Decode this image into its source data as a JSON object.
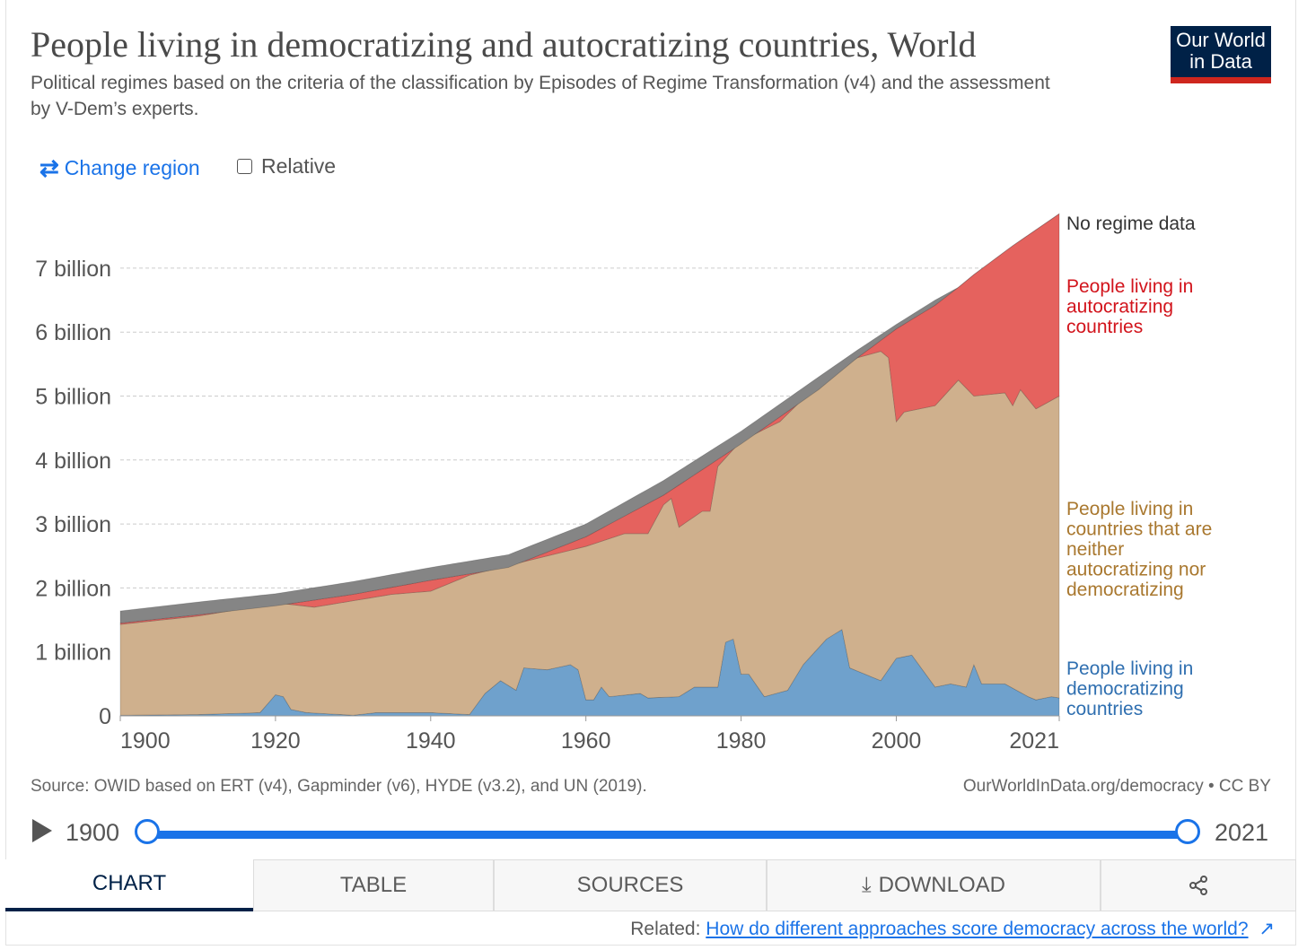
{
  "header": {
    "title": "People living in democratizing and autocratizing countries, World",
    "subtitle": "Political regimes based on the criteria of the classification by Episodes of Regime Transformation (v4) and the assessment by V-Dem’s experts.",
    "logo_text": "Our World in Data"
  },
  "controls": {
    "change_region": "Change region",
    "relative": "Relative"
  },
  "chart_data": {
    "type": "area",
    "stacked": true,
    "title": "People living in democratizing and autocratizing countries, World",
    "xlim": [
      1900,
      2021
    ],
    "ylim": [
      0,
      8000000000
    ],
    "x_ticks": [
      "1900",
      "1920",
      "1940",
      "1960",
      "1980",
      "2000",
      "2021"
    ],
    "x_tick_values": [
      1900,
      1920,
      1940,
      1960,
      1980,
      2000,
      2021
    ],
    "y_ticks": [
      "0",
      "1 billion",
      "2 billion",
      "3 billion",
      "4 billion",
      "5 billion",
      "6 billion",
      "7 billion"
    ],
    "y_tick_values": [
      0,
      1,
      2,
      3,
      4,
      5,
      6,
      7
    ],
    "unit": "billion people; points give the cumulative top of each stacked layer",
    "grid": true,
    "legend_placement": "right (inline labels)",
    "series": [
      {
        "name": "People living in democratizing countries",
        "color": "#6fa1cc",
        "label_color": "#2f6fb0",
        "points": [
          [
            1900,
            0.01
          ],
          [
            1910,
            0.02
          ],
          [
            1918,
            0.05
          ],
          [
            1920,
            0.33
          ],
          [
            1921,
            0.3
          ],
          [
            1922,
            0.1
          ],
          [
            1924,
            0.05
          ],
          [
            1930,
            0.01
          ],
          [
            1933,
            0.05
          ],
          [
            1940,
            0.05
          ],
          [
            1945,
            0.02
          ],
          [
            1947,
            0.35
          ],
          [
            1949,
            0.55
          ],
          [
            1951,
            0.4
          ],
          [
            1952,
            0.75
          ],
          [
            1955,
            0.72
          ],
          [
            1958,
            0.8
          ],
          [
            1959,
            0.72
          ],
          [
            1960,
            0.25
          ],
          [
            1961,
            0.25
          ],
          [
            1962,
            0.45
          ],
          [
            1963,
            0.3
          ],
          [
            1967,
            0.35
          ],
          [
            1968,
            0.28
          ],
          [
            1972,
            0.3
          ],
          [
            1974,
            0.45
          ],
          [
            1977,
            0.45
          ],
          [
            1978,
            1.15
          ],
          [
            1979,
            1.2
          ],
          [
            1980,
            0.65
          ],
          [
            1981,
            0.65
          ],
          [
            1983,
            0.3
          ],
          [
            1986,
            0.4
          ],
          [
            1988,
            0.8
          ],
          [
            1991,
            1.2
          ],
          [
            1993,
            1.35
          ],
          [
            1994,
            0.75
          ],
          [
            1998,
            0.55
          ],
          [
            2000,
            0.9
          ],
          [
            2002,
            0.95
          ],
          [
            2005,
            0.45
          ],
          [
            2007,
            0.5
          ],
          [
            2009,
            0.45
          ],
          [
            2010,
            0.8
          ],
          [
            2011,
            0.5
          ],
          [
            2014,
            0.5
          ],
          [
            2017,
            0.3
          ],
          [
            2018,
            0.25
          ],
          [
            2020,
            0.3
          ],
          [
            2021,
            0.28
          ]
        ]
      },
      {
        "name": "People living in countries that are neither autocratizing nor democratizing",
        "color": "#cfb08d",
        "label_color": "#a9782f",
        "points": [
          [
            1900,
            1.43
          ],
          [
            1910,
            1.56
          ],
          [
            1918,
            1.72
          ],
          [
            1920,
            1.77
          ],
          [
            1925,
            1.7
          ],
          [
            1930,
            1.8
          ],
          [
            1935,
            1.9
          ],
          [
            1940,
            1.95
          ],
          [
            1945,
            2.2
          ],
          [
            1950,
            2.35
          ],
          [
            1955,
            2.5
          ],
          [
            1960,
            2.65
          ],
          [
            1965,
            2.85
          ],
          [
            1968,
            2.85
          ],
          [
            1970,
            3.3
          ],
          [
            1971,
            3.4
          ],
          [
            1972,
            2.95
          ],
          [
            1975,
            3.2
          ],
          [
            1976,
            3.2
          ],
          [
            1977,
            3.9
          ],
          [
            1980,
            4.3
          ],
          [
            1985,
            4.6
          ],
          [
            1990,
            5.2
          ],
          [
            1995,
            5.6
          ],
          [
            1998,
            5.7
          ],
          [
            1999,
            5.6
          ],
          [
            2000,
            4.6
          ],
          [
            2001,
            4.75
          ],
          [
            2005,
            4.85
          ],
          [
            2008,
            5.25
          ],
          [
            2010,
            5.0
          ],
          [
            2014,
            5.05
          ],
          [
            2015,
            4.85
          ],
          [
            2016,
            5.1
          ],
          [
            2018,
            4.8
          ],
          [
            2021,
            5.0
          ]
        ]
      },
      {
        "name": "People living in autocratizing countries",
        "color": "#e5625e",
        "label_color": "#d2141c",
        "points": [
          [
            1900,
            1.45
          ],
          [
            1910,
            1.58
          ],
          [
            1920,
            1.72
          ],
          [
            1930,
            1.9
          ],
          [
            1940,
            2.12
          ],
          [
            1950,
            2.32
          ],
          [
            1960,
            2.8
          ],
          [
            1970,
            3.45
          ],
          [
            1980,
            4.25
          ],
          [
            1990,
            5.1
          ],
          [
            1995,
            5.6
          ],
          [
            2000,
            6.05
          ],
          [
            2005,
            6.42
          ],
          [
            2008,
            6.7
          ],
          [
            2010,
            6.9
          ],
          [
            2015,
            7.35
          ],
          [
            2021,
            7.85
          ]
        ]
      },
      {
        "name": "No regime data",
        "color": "#858585",
        "label_color": "#333333",
        "points": [
          [
            1900,
            1.64
          ],
          [
            1910,
            1.78
          ],
          [
            1920,
            1.91
          ],
          [
            1930,
            2.1
          ],
          [
            1940,
            2.32
          ],
          [
            1950,
            2.52
          ],
          [
            1960,
            3.0
          ],
          [
            1970,
            3.68
          ],
          [
            1980,
            4.45
          ],
          [
            1990,
            5.3
          ],
          [
            1995,
            5.72
          ],
          [
            2000,
            6.12
          ],
          [
            2005,
            6.5
          ],
          [
            2008,
            6.7
          ],
          [
            2010,
            6.9
          ],
          [
            2015,
            7.35
          ],
          [
            2021,
            7.85
          ]
        ]
      }
    ]
  },
  "footer": {
    "source": "Source: OWID based on ERT (v4), Gapminder (v6), HYDE (v3.2), and UN (2019).",
    "license": "OurWorldInData.org/democracy • CC BY"
  },
  "timeline": {
    "start": "1900",
    "end": "2021"
  },
  "tabs": [
    "CHART",
    "TABLE",
    "SOURCES",
    "DOWNLOAD"
  ],
  "related": {
    "label": "Related:",
    "link": "How do different approaches score democracy across the world?"
  }
}
